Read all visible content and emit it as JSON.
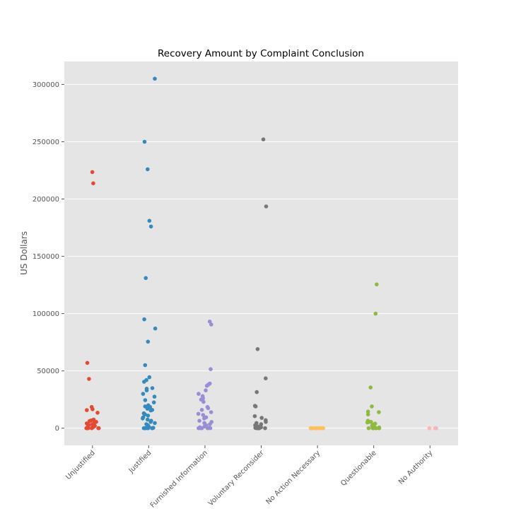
{
  "chart_data": {
    "type": "scatter",
    "title": "Recovery Amount by Complaint Conclusion",
    "xlabel": "",
    "ylabel": "US Dollars",
    "ylim": [
      -15000,
      320000
    ],
    "yticks": [
      0,
      50000,
      100000,
      150000,
      200000,
      250000,
      300000
    ],
    "ytick_labels": [
      "0",
      "50000",
      "100000",
      "150000",
      "200000",
      "250000",
      "300000"
    ],
    "grid": true,
    "categories": [
      "Unjustified",
      "Justified",
      "Furnished Information",
      "Voluntary Reconsider",
      "No Action Necessary",
      "Questionable",
      "No Authority"
    ],
    "series": [
      {
        "color": "#E24A33",
        "values": [
          223500,
          213700,
          57000,
          43000,
          18500,
          16500,
          15800,
          13500,
          7500,
          6800,
          6200,
          5500,
          5000,
          4200,
          3500,
          2800,
          2000,
          1500,
          1000,
          500,
          0,
          0,
          0,
          0,
          0,
          0
        ]
      },
      {
        "color": "#348ABD",
        "values": [
          305000,
          250000,
          226000,
          181000,
          176000,
          131000,
          95000,
          87000,
          75500,
          55000,
          44500,
          42000,
          40500,
          35000,
          34500,
          33000,
          30000,
          27500,
          24500,
          22500,
          20000,
          19000,
          18500,
          17000,
          16000,
          15500,
          13000,
          12000,
          11000,
          9500,
          8500,
          7500,
          6500,
          5500,
          4500,
          3500,
          2500,
          1500,
          800,
          300,
          0,
          0,
          0,
          0,
          0,
          0,
          0,
          0
        ]
      },
      {
        "color": "#988ED5",
        "values": [
          93000,
          90500,
          51500,
          39000,
          38000,
          37000,
          33000,
          30000,
          28000,
          26000,
          25000,
          23000,
          18500,
          17500,
          16000,
          14000,
          12500,
          11500,
          9500,
          8500,
          6500,
          5500,
          4500,
          3500,
          2500,
          1500,
          800,
          300,
          0,
          0,
          0,
          0,
          0,
          0
        ]
      },
      {
        "color": "#777777",
        "values": [
          252000,
          193500,
          69000,
          43500,
          31500,
          19500,
          19000,
          10500,
          9000,
          7000,
          5500,
          4500,
          3500,
          2500,
          1500,
          800,
          300,
          0,
          0,
          0,
          0,
          0
        ]
      },
      {
        "color": "#FBC15E",
        "values": [
          0,
          0,
          0,
          0,
          0,
          0,
          0,
          0,
          0,
          0,
          0,
          0,
          0,
          0
        ]
      },
      {
        "color": "#8EBA42",
        "values": [
          125500,
          100000,
          35500,
          19000,
          14500,
          14000,
          12000,
          6500,
          5500,
          5500,
          5000,
          4000,
          3000,
          2000,
          1200,
          600,
          200,
          0,
          0,
          0,
          0,
          0,
          0,
          0
        ]
      },
      {
        "color": "#FFB5B8",
        "values": [
          0,
          0,
          0
        ]
      }
    ]
  }
}
